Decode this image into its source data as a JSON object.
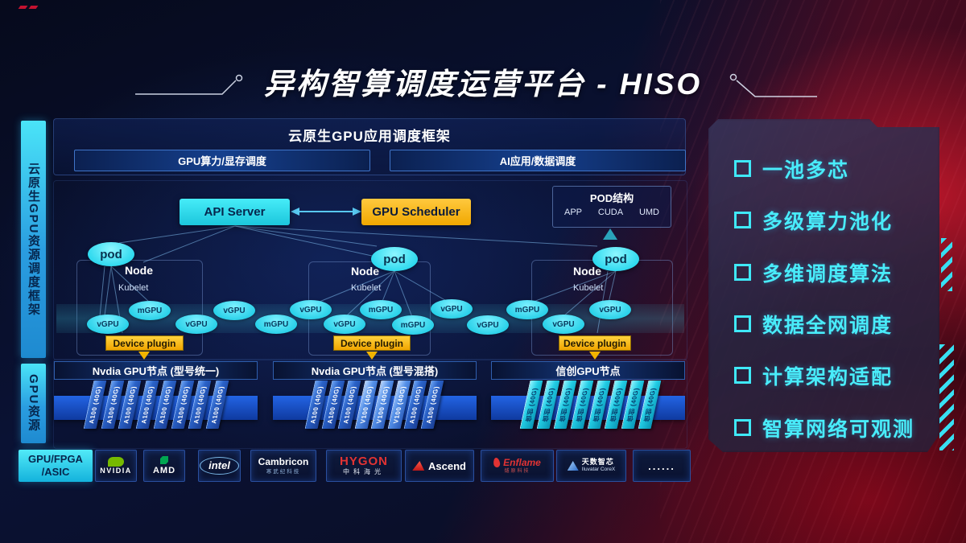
{
  "title": "异构智算调度运营平台 - HISO",
  "sidebar": {
    "frame": "云原生GPU资源调度框架",
    "resource": "GPU资源"
  },
  "framework": {
    "title": "云原生GPU应用调度框架",
    "bars": [
      "GPU算力/显存调度",
      "AI应用/数据调度"
    ]
  },
  "control": {
    "api_server": "API Server",
    "scheduler": "GPU Scheduler",
    "pod_box": {
      "title": "POD结构",
      "items": [
        "APP",
        "CUDA",
        "UMD"
      ]
    }
  },
  "nodes": [
    {
      "name": "Node",
      "agent": "Kubelet",
      "pod": "pod",
      "plugin": "Device plugin"
    },
    {
      "name": "Node",
      "agent": "Kubelet",
      "pod": "pod",
      "plugin": "Device plugin"
    },
    {
      "name": "Node",
      "agent": "Kubelet",
      "pod": "pod",
      "plugin": "Device plugin"
    }
  ],
  "gpu_ellipses": [
    "vGPU",
    "mGPU",
    "vGPU",
    "vGPU",
    "mGPU",
    "vGPU",
    "vGPU",
    "mGPU",
    "mGPU",
    "vGPU",
    "vGPU",
    "mGPU",
    "vGPU",
    "vGPU"
  ],
  "gpu_groups": [
    {
      "title": "Nvdia GPU节点 (型号统一)",
      "cards": [
        {
          "label": "A100 (40G)",
          "type": "a100"
        },
        {
          "label": "A100 (40G)",
          "type": "a100"
        },
        {
          "label": "A100 (40G)",
          "type": "a100"
        },
        {
          "label": "A100 (40G)",
          "type": "a100"
        },
        {
          "label": "A100 (40G)",
          "type": "a100"
        },
        {
          "label": "A100 (40G)",
          "type": "a100"
        },
        {
          "label": "A100 (40G)",
          "type": "a100"
        },
        {
          "label": "A100 (40G)",
          "type": "a100"
        }
      ]
    },
    {
      "title": "Nvdia GPU节点 (型号混搭)",
      "cards": [
        {
          "label": "A100 (40G)",
          "type": "a100"
        },
        {
          "label": "A100 (40G)",
          "type": "a100"
        },
        {
          "label": "A100 (40G)",
          "type": "a100"
        },
        {
          "label": "V100 (40G)",
          "type": "v100"
        },
        {
          "label": "V100 (40G)",
          "type": "v100"
        },
        {
          "label": "V100 (40G)",
          "type": "v100"
        },
        {
          "label": "A100 (40G)",
          "type": "a100"
        },
        {
          "label": "A100 (40G)",
          "type": "a100"
        }
      ]
    },
    {
      "title": "信创GPU节点",
      "cards": [
        {
          "label": "信创 (40G)",
          "type": "xc"
        },
        {
          "label": "信创 (40G)",
          "type": "xc"
        },
        {
          "label": "信创 (40G)",
          "type": "xc"
        },
        {
          "label": "信创 (40G)",
          "type": "xc"
        },
        {
          "label": "信创 (40G)",
          "type": "xc"
        },
        {
          "label": "信创 (40G)",
          "type": "xc"
        },
        {
          "label": "信创 (40G)",
          "type": "xc"
        },
        {
          "label": "信创 (40G)",
          "type": "xc"
        }
      ]
    }
  ],
  "bottom": {
    "label_line1": "GPU/FPGA",
    "label_line2": "/ASIC",
    "vendors": [
      {
        "id": "nvidia",
        "name": "NVIDIA",
        "sub": ""
      },
      {
        "id": "amd",
        "name": "AMD",
        "sub": ""
      },
      {
        "id": "intel",
        "name": "intel",
        "sub": ""
      },
      {
        "id": "cambricon",
        "name": "Cambricon",
        "sub": "寒武纪科技"
      },
      {
        "id": "hygon",
        "name": "HYGON",
        "sub": "中科海光"
      },
      {
        "id": "ascend",
        "name": "Ascend",
        "sub": ""
      },
      {
        "id": "enflame",
        "name": "Enflame",
        "sub": "燧原科技"
      },
      {
        "id": "iluvatar",
        "name": "天数智芯",
        "sub": "Iluvatar CoreX"
      },
      {
        "id": "more",
        "name": "......",
        "sub": ""
      }
    ]
  },
  "features": [
    "一池多芯",
    "多级算力池化",
    "多维调度算法",
    "数据全网调度",
    "计算架构适配",
    "智算网络可观测"
  ],
  "colors": {
    "accent_cyan": "#3be6f6",
    "accent_gold": "#f7b500",
    "nvidia_green": "#76b900",
    "brand_red": "#c41230"
  }
}
